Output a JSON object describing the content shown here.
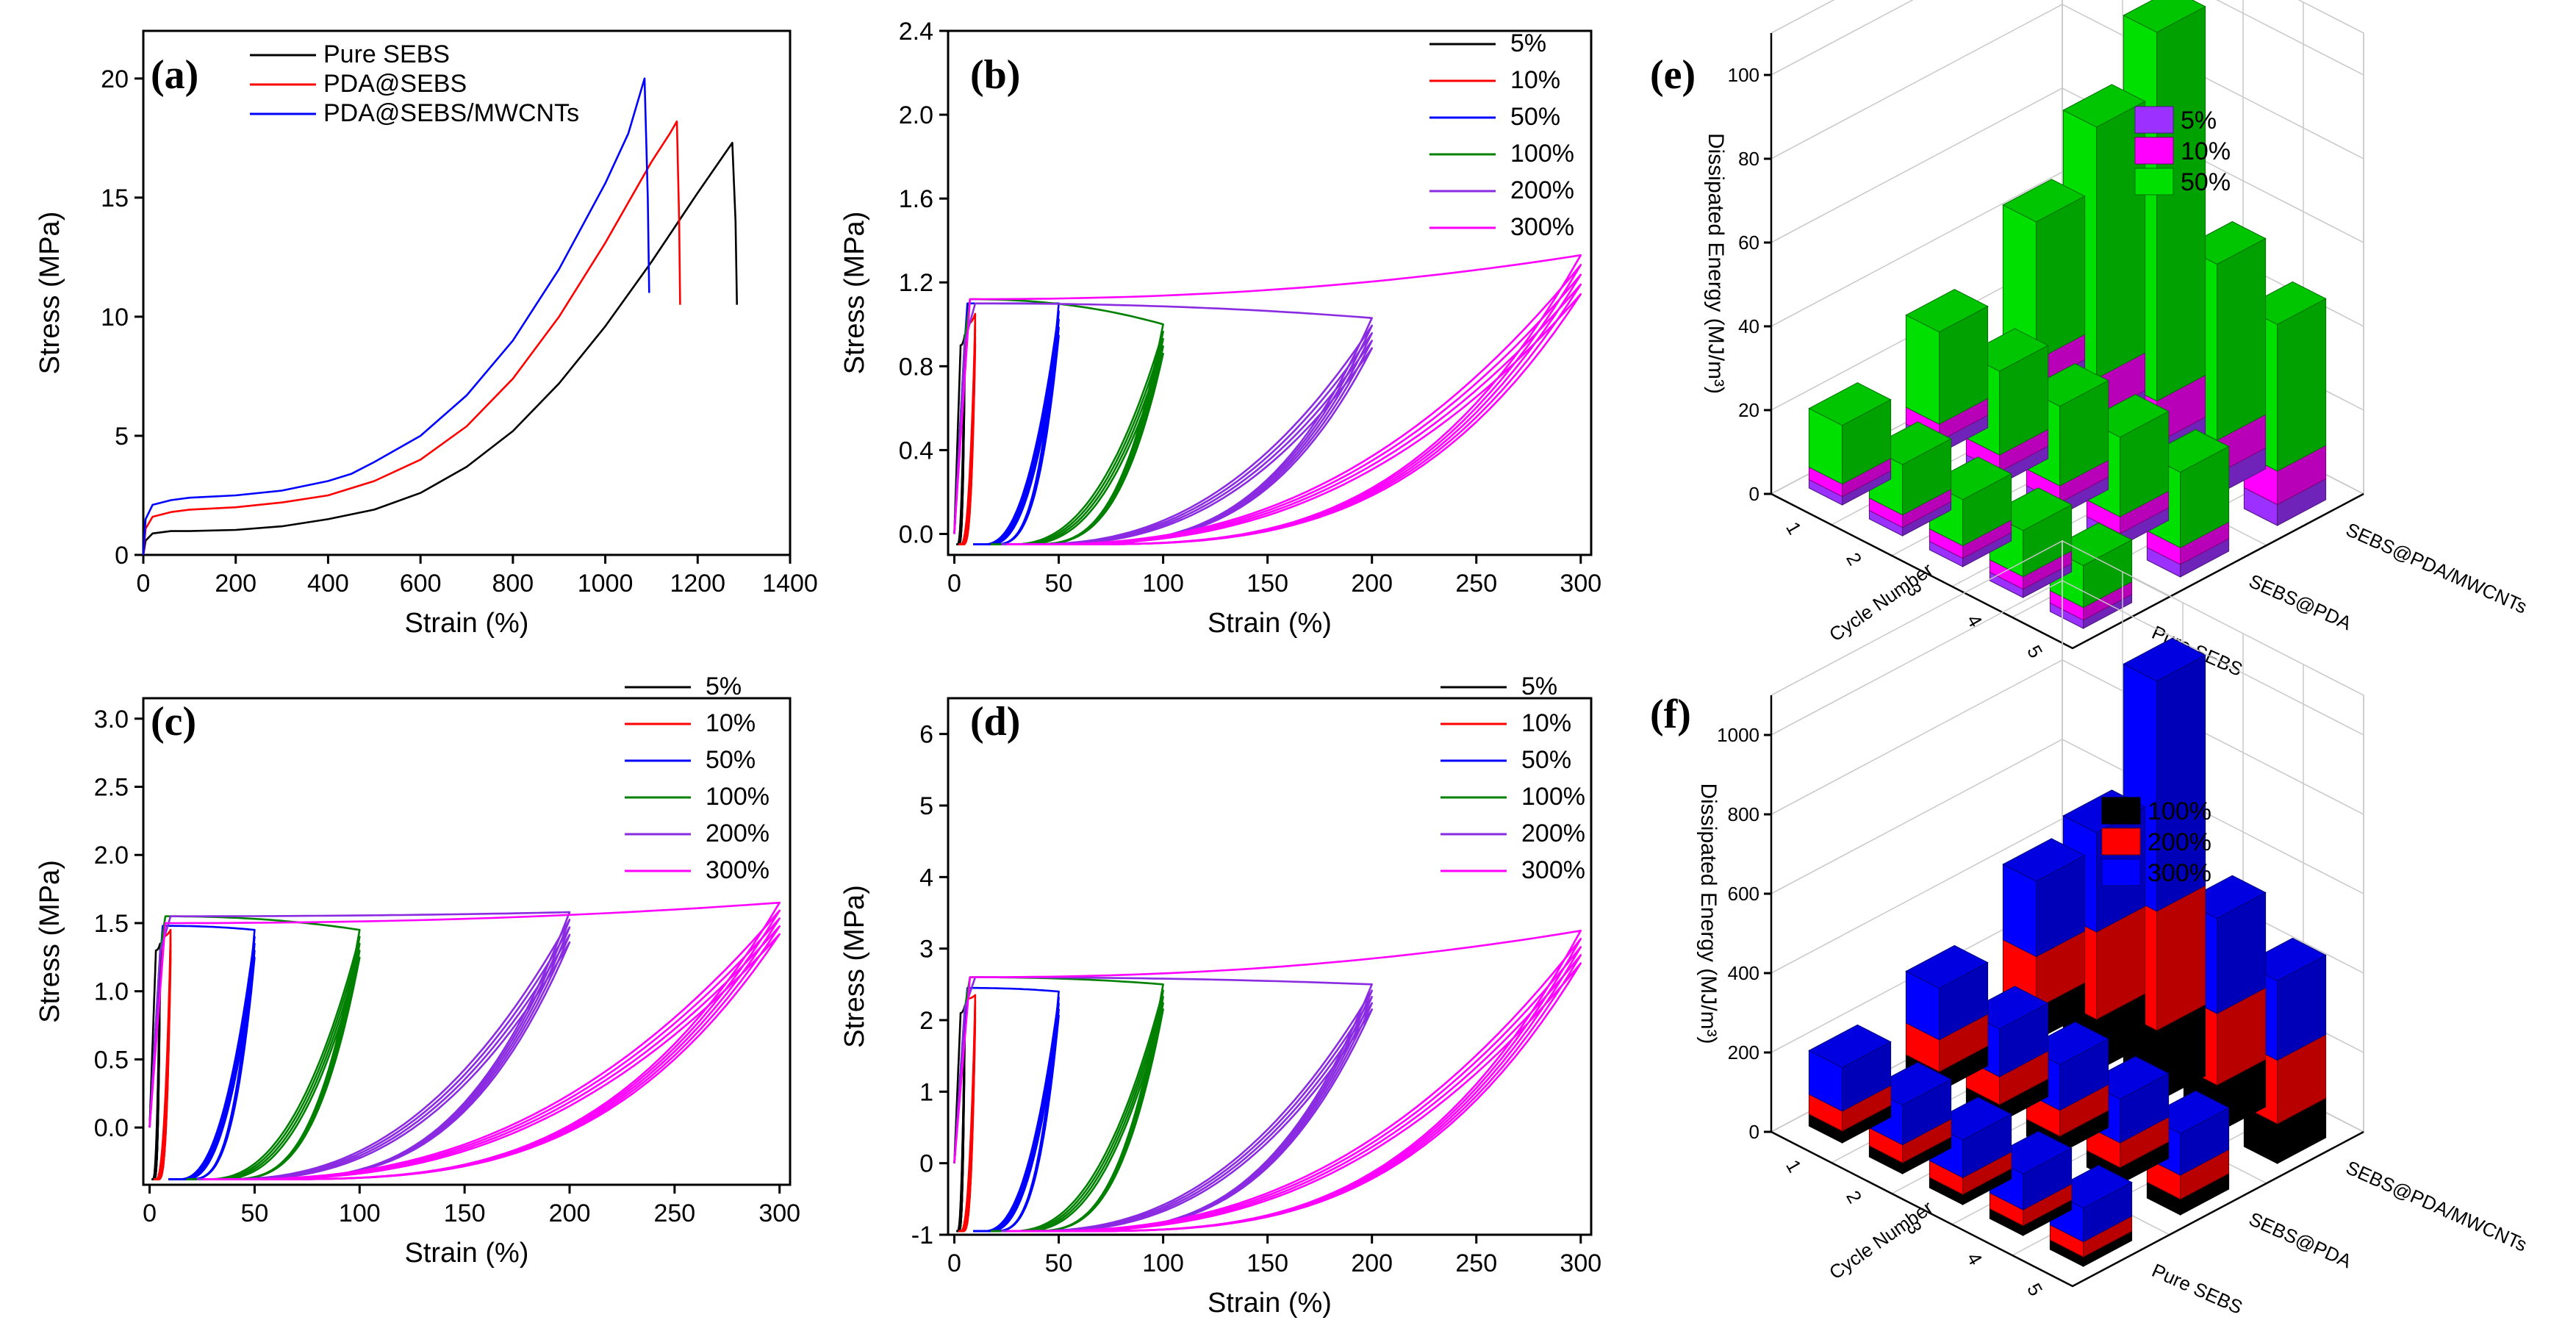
{
  "figure_labels": {
    "a": "(a)",
    "b": "(b)",
    "c": "(c)",
    "d": "(d)",
    "e": "(e)",
    "f": "(f)"
  },
  "colors": {
    "pure_sebs": "#000000",
    "pda_sebs": "#ff0000",
    "pda_sebs_mwcnts": "#0000ff",
    "s5": "#000000",
    "s10": "#ff0000",
    "s50": "#0000ff",
    "s100": "#008000",
    "s200": "#8a2be2",
    "s300": "#ff00ff",
    "e5": "#9b30ff",
    "e10": "#ff00ff",
    "e50": "#00e000",
    "f100": "#000000",
    "f200": "#ff0000",
    "f300": "#0000ff"
  },
  "chart_data": [
    {
      "id": "a",
      "type": "line",
      "title": "",
      "xlabel": "Strain (%)",
      "ylabel": "Stress (MPa)",
      "xlim": [
        0,
        1400
      ],
      "ylim": [
        0,
        22
      ],
      "xticks": [
        "0",
        "200",
        "400",
        "600",
        "800",
        "1000",
        "1200",
        "1400"
      ],
      "xtick_values": [
        0,
        200,
        400,
        600,
        800,
        1000,
        1200,
        1400
      ],
      "yticks": [
        "0",
        "5",
        "10",
        "15",
        "20"
      ],
      "ytick_values": [
        0,
        5,
        10,
        15,
        20
      ],
      "legend": [
        "Pure SEBS",
        "PDA@SEBS",
        "PDA@SEBS/MWCNTs"
      ],
      "series": [
        {
          "name": "Pure SEBS",
          "x": [
            0,
            5,
            20,
            60,
            100,
            200,
            300,
            400,
            500,
            600,
            700,
            800,
            900,
            1000,
            1100,
            1200,
            1250,
            1275,
            1282,
            1285
          ],
          "y": [
            0,
            0.6,
            0.9,
            1.0,
            1.0,
            1.05,
            1.2,
            1.5,
            1.9,
            2.6,
            3.7,
            5.2,
            7.2,
            9.6,
            12.3,
            15.2,
            16.6,
            17.3,
            14.0,
            10.5
          ]
        },
        {
          "name": "PDA@SEBS",
          "x": [
            0,
            5,
            20,
            60,
            100,
            200,
            300,
            400,
            500,
            600,
            700,
            800,
            900,
            1000,
            1100,
            1140,
            1155,
            1160,
            1162
          ],
          "y": [
            0,
            1.1,
            1.6,
            1.8,
            1.9,
            2.0,
            2.2,
            2.5,
            3.1,
            4.0,
            5.4,
            7.4,
            10.0,
            13.1,
            16.5,
            17.7,
            18.2,
            14.0,
            10.5
          ]
        },
        {
          "name": "PDA@SEBS/MWCNTs",
          "x": [
            0,
            5,
            20,
            60,
            100,
            200,
            300,
            400,
            450,
            500,
            600,
            700,
            800,
            900,
            1000,
            1050,
            1085,
            1092,
            1095
          ],
          "y": [
            0,
            1.5,
            2.1,
            2.3,
            2.4,
            2.5,
            2.7,
            3.1,
            3.4,
            3.9,
            5.0,
            6.7,
            9.0,
            12.0,
            15.6,
            17.7,
            20.0,
            15.0,
            11.0
          ]
        }
      ]
    },
    {
      "id": "b",
      "type": "line",
      "xlabel": "Strain (%)",
      "ylabel": "Stress (MPa)",
      "xlim": [
        -3,
        305
      ],
      "ylim": [
        -0.1,
        2.4
      ],
      "xticks": [
        "0",
        "50",
        "100",
        "150",
        "200",
        "250",
        "300"
      ],
      "xtick_values": [
        0,
        50,
        100,
        150,
        200,
        250,
        300
      ],
      "yticks": [
        "0.0",
        "0.4",
        "0.8",
        "1.2",
        "1.6",
        "2.0",
        "2.4"
      ],
      "ytick_values": [
        0,
        0.4,
        0.8,
        1.2,
        1.6,
        2.0,
        2.4
      ],
      "legend": [
        "5%",
        "10%",
        "50%",
        "100%",
        "200%",
        "300%"
      ],
      "loops": [
        {
          "strain": 5,
          "peak": 0.95,
          "yield": 0.9,
          "base": -0.05,
          "residual": 2
        },
        {
          "strain": 10,
          "peak": 1.05,
          "yield": 1.0,
          "base": -0.05,
          "residual": 4
        },
        {
          "strain": 50,
          "peak": 1.1,
          "yield": 1.1,
          "base": -0.05,
          "residual": 18
        },
        {
          "strain": 100,
          "peak": 1.0,
          "yield": 1.12,
          "base": -0.05,
          "residual": 35
        },
        {
          "strain": 200,
          "peak": 1.03,
          "yield": 1.1,
          "base": -0.05,
          "residual": 45
        },
        {
          "strain": 300,
          "peak": 1.33,
          "yield": 1.12,
          "base": -0.05,
          "residual": 50
        }
      ]
    },
    {
      "id": "c",
      "type": "line",
      "xlabel": "Strain (%)",
      "ylabel": "Stress (MPa)",
      "xlim": [
        -3,
        305
      ],
      "ylim": [
        -0.42,
        3.15
      ],
      "xticks": [
        "0",
        "50",
        "100",
        "150",
        "200",
        "250",
        "300"
      ],
      "xtick_values": [
        0,
        50,
        100,
        150,
        200,
        250,
        300
      ],
      "yticks": [
        "0.0",
        "0.5",
        "1.0",
        "1.5",
        "2.0",
        "2.5",
        "3.0"
      ],
      "ytick_values": [
        0,
        0.5,
        1.0,
        1.5,
        2.0,
        2.5,
        3.0
      ],
      "legend": [
        "5%",
        "10%",
        "50%",
        "100%",
        "200%",
        "300%"
      ],
      "loops": [
        {
          "strain": 5,
          "peak": 1.35,
          "yield": 1.3,
          "base": -0.38,
          "residual": 2
        },
        {
          "strain": 10,
          "peak": 1.45,
          "yield": 1.4,
          "base": -0.38,
          "residual": 4
        },
        {
          "strain": 50,
          "peak": 1.45,
          "yield": 1.48,
          "base": -0.38,
          "residual": 18
        },
        {
          "strain": 100,
          "peak": 1.45,
          "yield": 1.55,
          "base": -0.38,
          "residual": 35
        },
        {
          "strain": 200,
          "peak": 1.58,
          "yield": 1.55,
          "base": -0.38,
          "residual": 45
        },
        {
          "strain": 300,
          "peak": 1.65,
          "yield": 1.5,
          "base": -0.38,
          "residual": 50
        }
      ]
    },
    {
      "id": "d",
      "type": "line",
      "xlabel": "Strain (%)",
      "ylabel": "Stress (MPa)",
      "xlim": [
        -3,
        305
      ],
      "ylim": [
        -1,
        6.5
      ],
      "xticks": [
        "0",
        "50",
        "100",
        "150",
        "200",
        "250",
        "300"
      ],
      "xtick_values": [
        0,
        50,
        100,
        150,
        200,
        250,
        300
      ],
      "yticks": [
        "-1",
        "0",
        "1",
        "2",
        "3",
        "4",
        "5",
        "6"
      ],
      "ytick_values": [
        -1,
        0,
        1,
        2,
        3,
        4,
        5,
        6
      ],
      "legend": [
        "5%",
        "10%",
        "50%",
        "100%",
        "200%",
        "300%"
      ],
      "loops": [
        {
          "strain": 5,
          "peak": 2.2,
          "yield": 2.1,
          "base": -0.95,
          "residual": 2
        },
        {
          "strain": 10,
          "peak": 2.35,
          "yield": 2.3,
          "base": -0.95,
          "residual": 4
        },
        {
          "strain": 50,
          "peak": 2.4,
          "yield": 2.45,
          "base": -0.95,
          "residual": 18
        },
        {
          "strain": 100,
          "peak": 2.5,
          "yield": 2.6,
          "base": -0.95,
          "residual": 35
        },
        {
          "strain": 200,
          "peak": 2.5,
          "yield": 2.6,
          "base": -0.95,
          "residual": 45
        },
        {
          "strain": 300,
          "peak": 3.25,
          "yield": 2.6,
          "base": -0.95,
          "residual": 50
        }
      ]
    },
    {
      "id": "e",
      "type": "bar3d",
      "zlabel": "Dissipated Energy (MJ/m³)",
      "xlabel": "Cycle Number",
      "ylabel": "",
      "zlim": [
        0,
        110
      ],
      "zticks": [
        "0",
        "20",
        "40",
        "60",
        "80",
        "100"
      ],
      "ztick_values": [
        0,
        20,
        40,
        60,
        80,
        100
      ],
      "cycles": [
        "1",
        "2",
        "3",
        "4",
        "5"
      ],
      "samples": [
        "Pure SEBS",
        "SEBS@PDA",
        "SEBS@PDA/MWCNTs"
      ],
      "legend": [
        "5%",
        "10%",
        "50%"
      ],
      "stacks": {
        "Pure SEBS": [
          [
            2,
            3,
            14
          ],
          [
            2,
            3,
            12
          ],
          [
            2,
            3,
            11
          ],
          [
            2,
            3,
            11
          ],
          [
            2,
            3,
            10
          ]
        ],
        "SEBS@PDA": [
          [
            3,
            4,
            22
          ],
          [
            3,
            4,
            20
          ],
          [
            3,
            4,
            19
          ],
          [
            3,
            4,
            19
          ],
          [
            3,
            4,
            18
          ]
        ],
        "SEBS@PDA/MWCNTs": [
          [
            4,
            6,
            33
          ],
          [
            4,
            9,
            60
          ],
          [
            5,
            10,
            88
          ],
          [
            5,
            8,
            42
          ],
          [
            5,
            8,
            35
          ]
        ]
      }
    },
    {
      "id": "f",
      "type": "bar3d",
      "zlabel": "Dissipated Energy (MJ/m³)",
      "xlabel": "Cycle Number",
      "zlim": [
        0,
        1100
      ],
      "zticks": [
        "0",
        "200",
        "400",
        "600",
        "800",
        "1000"
      ],
      "ztick_values": [
        0,
        200,
        400,
        600,
        800,
        1000
      ],
      "cycles": [
        "1",
        "2",
        "3",
        "4",
        "5"
      ],
      "samples": [
        "Pure SEBS",
        "SEBS@PDA",
        "SEBS@PDA/MWCNTs"
      ],
      "legend": [
        "100%",
        "200%",
        "300%"
      ],
      "stacks": {
        "Pure SEBS": [
          [
            30,
            50,
            110
          ],
          [
            28,
            45,
            100
          ],
          [
            26,
            42,
            95
          ],
          [
            25,
            40,
            90
          ],
          [
            24,
            38,
            85
          ]
        ],
        "SEBS@PDA": [
          [
            50,
            80,
            130
          ],
          [
            45,
            70,
            120
          ],
          [
            43,
            65,
            115
          ],
          [
            42,
            62,
            110
          ],
          [
            40,
            60,
            105
          ]
        ],
        "SEBS@PDA/MWCNTs": [
          [
            80,
            130,
            190
          ],
          [
            130,
            220,
            250
          ],
          [
            180,
            300,
            580
          ],
          [
            120,
            180,
            240
          ],
          [
            100,
            160,
            200
          ]
        ]
      }
    }
  ],
  "sample_axis_labels": {
    "e": [
      "Pure SEBS",
      "SEBS@PDA",
      "SEBS@PDA/MWCNTs"
    ],
    "f": [
      "Pure SEBS",
      "SEBS@PDA",
      "SEBS@PDA/MWCNTs"
    ]
  },
  "cycle_title": "Cycle Number"
}
